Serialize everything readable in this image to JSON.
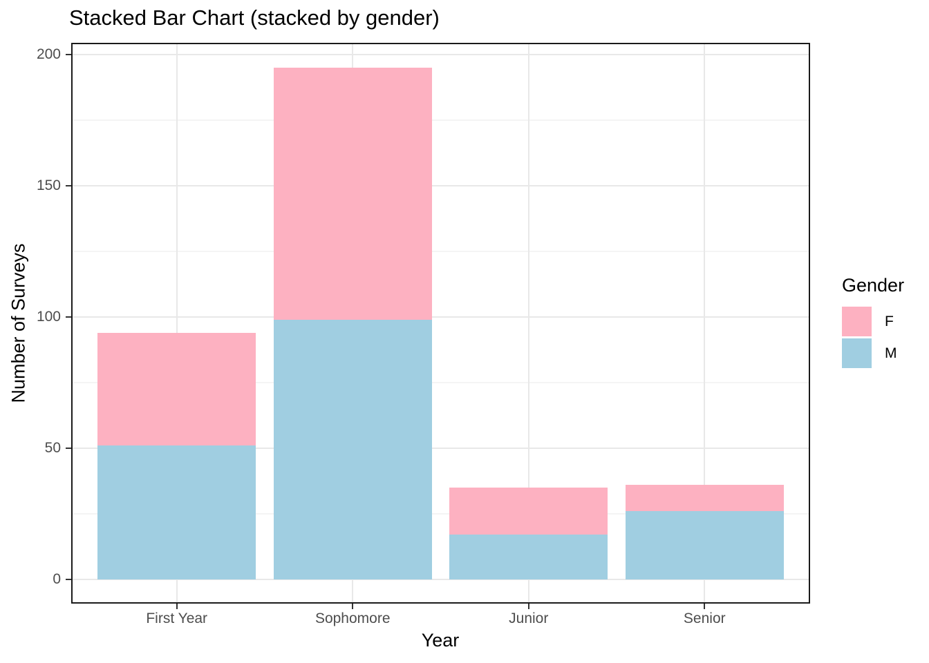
{
  "chart_data": {
    "type": "bar",
    "stacked": true,
    "title": "Stacked Bar Chart (stacked by gender)",
    "xlabel": "Year",
    "ylabel": "Number of Surveys",
    "categories": [
      "First Year",
      "Sophomore",
      "Junior",
      "Senior"
    ],
    "series": [
      {
        "name": "M",
        "color": "#A0CEE1",
        "values": [
          51,
          99,
          17,
          26
        ]
      },
      {
        "name": "F",
        "color": "#FDB1C1",
        "values": [
          43,
          96,
          18,
          10
        ]
      }
    ],
    "stack_totals": [
      94,
      195,
      35,
      36
    ],
    "stack_order_bottom_to_top": [
      "M",
      "F"
    ],
    "ylim": [
      0,
      200
    ],
    "yticks": [
      0,
      50,
      100,
      150,
      200
    ],
    "yticks_minor": [
      25,
      75,
      125,
      175
    ],
    "grid": "horizontal major+minor, vertical major at category centers",
    "legend": {
      "title": "Gender",
      "position": "right",
      "entries": [
        {
          "label": "F",
          "color": "#FDB1C1"
        },
        {
          "label": "M",
          "color": "#A0CEE1"
        }
      ]
    },
    "colors": {
      "panel_border": "#1A1A1A",
      "tick_mark": "#333333",
      "tick_label": "#4D4D4D",
      "grid_major": "#E8E8E8",
      "grid_minor": "#F4F4F4",
      "title_text": "#000000"
    }
  }
}
